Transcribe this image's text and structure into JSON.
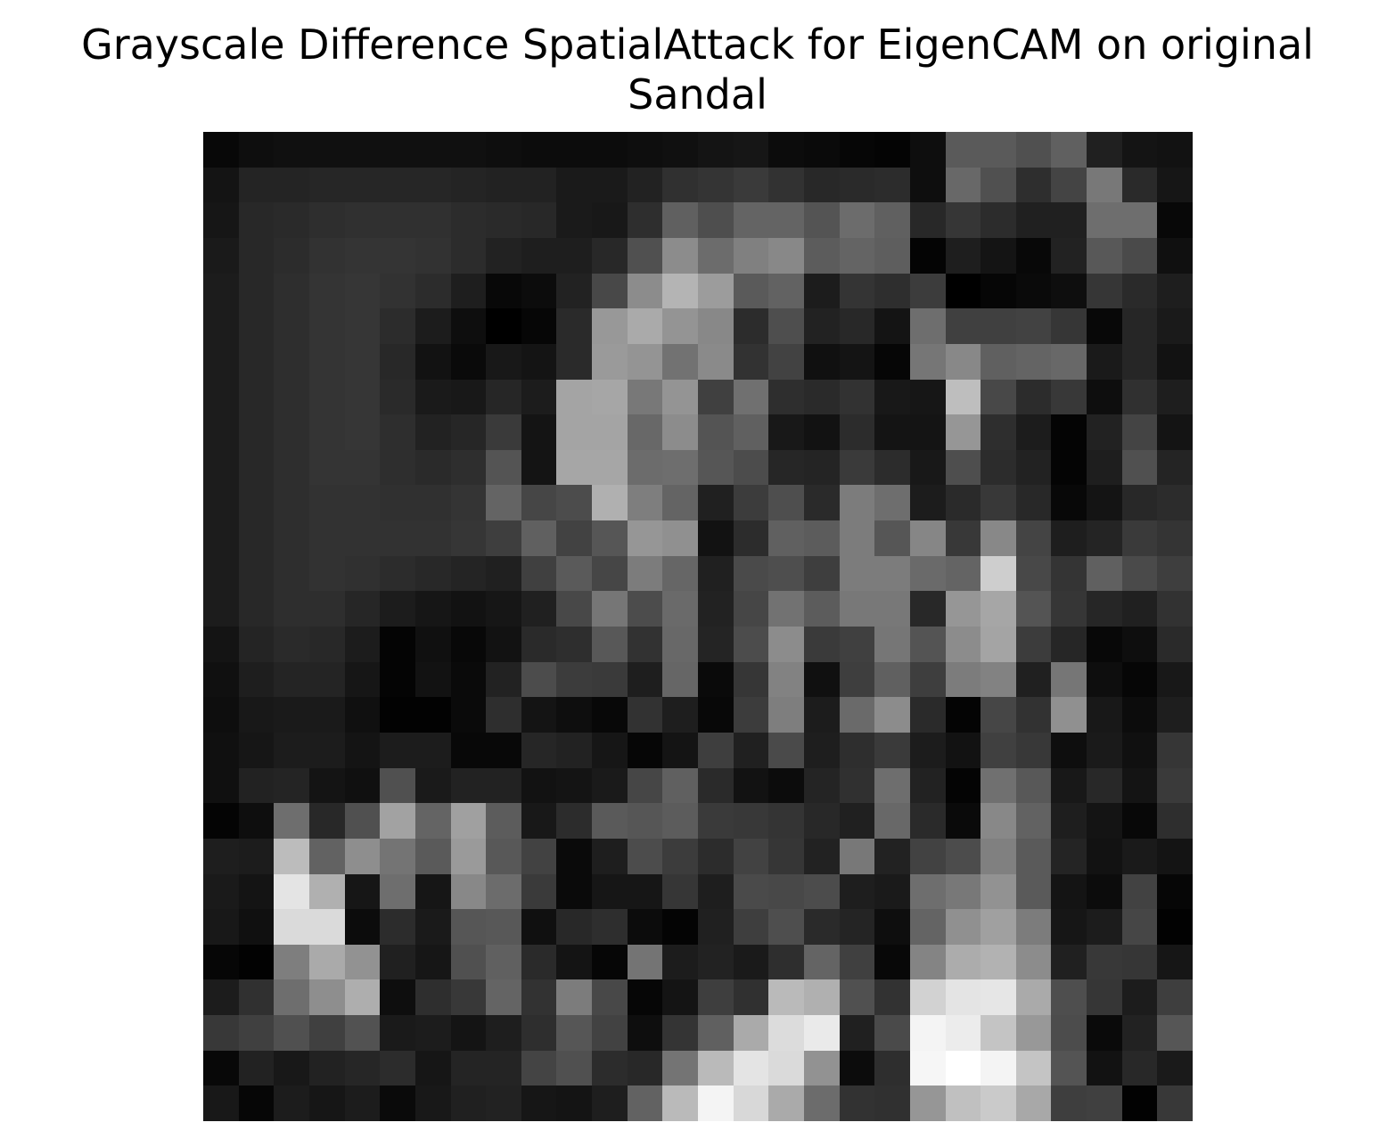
{
  "chart_data": {
    "type": "heatmap",
    "title_lines": [
      "Grayscale Difference SpatialAttack for EigenCAM on original",
      "Sandal"
    ],
    "colormap": "gray",
    "value_range": [
      0,
      255
    ],
    "axes_visible": false,
    "rows": 28,
    "cols": 28,
    "values": [
      [
        8,
        14,
        16,
        16,
        16,
        16,
        16,
        16,
        14,
        12,
        12,
        12,
        14,
        16,
        20,
        22,
        12,
        10,
        6,
        4,
        14,
        90,
        90,
        80,
        96,
        32,
        20,
        18
      ],
      [
        20,
        36,
        36,
        38,
        38,
        38,
        38,
        36,
        34,
        34,
        26,
        26,
        34,
        48,
        52,
        58,
        50,
        40,
        42,
        44,
        14,
        104,
        80,
        46,
        68,
        120,
        42,
        22
      ],
      [
        22,
        40,
        42,
        46,
        48,
        48,
        48,
        44,
        42,
        40,
        26,
        24,
        46,
        96,
        78,
        100,
        100,
        84,
        108,
        96,
        40,
        54,
        44,
        32,
        32,
        110,
        110,
        8
      ],
      [
        26,
        40,
        44,
        50,
        52,
        52,
        50,
        44,
        34,
        30,
        30,
        40,
        80,
        140,
        108,
        128,
        136,
        92,
        100,
        94,
        4,
        30,
        20,
        8,
        34,
        88,
        74,
        16
      ],
      [
        28,
        40,
        46,
        52,
        54,
        50,
        44,
        30,
        8,
        12,
        34,
        72,
        140,
        180,
        156,
        90,
        98,
        28,
        52,
        46,
        60,
        0,
        6,
        10,
        14,
        54,
        42,
        30
      ],
      [
        28,
        40,
        46,
        52,
        54,
        44,
        28,
        14,
        0,
        6,
        42,
        152,
        170,
        148,
        136,
        44,
        78,
        34,
        40,
        20,
        110,
        64,
        64,
        66,
        54,
        8,
        38,
        26
      ],
      [
        28,
        40,
        46,
        52,
        54,
        40,
        18,
        10,
        24,
        20,
        42,
        154,
        148,
        114,
        138,
        50,
        66,
        16,
        20,
        6,
        118,
        136,
        96,
        100,
        104,
        26,
        38,
        18
      ],
      [
        28,
        40,
        46,
        52,
        54,
        42,
        26,
        24,
        38,
        28,
        164,
        166,
        120,
        148,
        64,
        112,
        46,
        42,
        50,
        24,
        22,
        190,
        72,
        44,
        56,
        14,
        48,
        30
      ],
      [
        28,
        40,
        46,
        52,
        54,
        46,
        34,
        38,
        58,
        20,
        164,
        164,
        104,
        140,
        84,
        96,
        24,
        18,
        44,
        20,
        20,
        150,
        46,
        28,
        4,
        34,
        68,
        20
      ],
      [
        28,
        40,
        46,
        52,
        52,
        46,
        42,
        46,
        84,
        20,
        166,
        166,
        108,
        110,
        86,
        76,
        38,
        36,
        58,
        44,
        24,
        78,
        44,
        34,
        4,
        30,
        80,
        36
      ],
      [
        28,
        40,
        46,
        50,
        50,
        48,
        48,
        52,
        100,
        70,
        76,
        176,
        126,
        100,
        32,
        60,
        78,
        42,
        124,
        110,
        28,
        42,
        56,
        40,
        8,
        20,
        40,
        44
      ],
      [
        28,
        40,
        46,
        50,
        50,
        50,
        50,
        54,
        62,
        96,
        66,
        86,
        150,
        144,
        18,
        44,
        96,
        92,
        124,
        86,
        134,
        56,
        136,
        68,
        30,
        36,
        58,
        52
      ],
      [
        28,
        40,
        46,
        50,
        48,
        44,
        40,
        36,
        32,
        64,
        90,
        70,
        124,
        102,
        32,
        74,
        78,
        62,
        124,
        124,
        106,
        100,
        206,
        72,
        52,
        96,
        74,
        62
      ],
      [
        28,
        40,
        46,
        46,
        38,
        28,
        22,
        18,
        22,
        32,
        72,
        118,
        76,
        106,
        34,
        70,
        114,
        92,
        120,
        120,
        40,
        150,
        166,
        84,
        54,
        38,
        32,
        50
      ],
      [
        20,
        36,
        42,
        40,
        28,
        4,
        16,
        8,
        18,
        42,
        46,
        88,
        50,
        104,
        36,
        76,
        140,
        58,
        64,
        118,
        84,
        140,
        164,
        60,
        38,
        8,
        14,
        42
      ],
      [
        16,
        30,
        36,
        36,
        22,
        4,
        18,
        10,
        34,
        76,
        60,
        58,
        30,
        102,
        10,
        54,
        130,
        16,
        62,
        96,
        62,
        124,
        130,
        32,
        118,
        14,
        6,
        24
      ],
      [
        14,
        24,
        26,
        26,
        16,
        2,
        2,
        10,
        46,
        20,
        14,
        8,
        50,
        30,
        8,
        60,
        126,
        28,
        106,
        140,
        42,
        4,
        70,
        50,
        144,
        24,
        12,
        30
      ],
      [
        16,
        22,
        28,
        28,
        20,
        28,
        28,
        8,
        8,
        38,
        34,
        22,
        6,
        20,
        62,
        32,
        74,
        30,
        46,
        58,
        28,
        18,
        64,
        56,
        14,
        26,
        16,
        54
      ],
      [
        16,
        34,
        36,
        20,
        16,
        80,
        26,
        34,
        34,
        18,
        20,
        26,
        70,
        96,
        42,
        18,
        12,
        36,
        48,
        110,
        34,
        4,
        112,
        88,
        24,
        40,
        20,
        58
      ],
      [
        4,
        14,
        110,
        40,
        80,
        162,
        100,
        160,
        92,
        24,
        44,
        90,
        86,
        92,
        58,
        56,
        52,
        40,
        32,
        104,
        42,
        10,
        136,
        98,
        30,
        20,
        8,
        46
      ],
      [
        30,
        28,
        188,
        98,
        142,
        116,
        90,
        154,
        88,
        66,
        10,
        30,
        76,
        60,
        44,
        66,
        54,
        34,
        120,
        34,
        66,
        76,
        128,
        90,
        36,
        18,
        26,
        20
      ],
      [
        26,
        20,
        228,
        176,
        22,
        110,
        22,
        136,
        108,
        58,
        10,
        22,
        22,
        54,
        30,
        74,
        72,
        76,
        30,
        26,
        110,
        120,
        146,
        90,
        20,
        12,
        66,
        6
      ],
      [
        24,
        16,
        218,
        218,
        12,
        44,
        26,
        86,
        88,
        16,
        40,
        46,
        12,
        4,
        32,
        62,
        78,
        42,
        36,
        14,
        100,
        144,
        160,
        124,
        22,
        28,
        70,
        2
      ],
      [
        6,
        2,
        126,
        170,
        146,
        32,
        22,
        80,
        96,
        42,
        20,
        6,
        116,
        28,
        34,
        26,
        46,
        100,
        64,
        8,
        132,
        172,
        178,
        140,
        32,
        56,
        54,
        22
      ],
      [
        28,
        48,
        110,
        142,
        174,
        14,
        46,
        56,
        100,
        50,
        124,
        72,
        6,
        20,
        62,
        48,
        186,
        176,
        80,
        50,
        210,
        228,
        230,
        170,
        78,
        54,
        28,
        62
      ],
      [
        56,
        64,
        80,
        64,
        82,
        26,
        28,
        20,
        30,
        46,
        86,
        66,
        14,
        52,
        96,
        170,
        220,
        234,
        32,
        74,
        244,
        236,
        196,
        152,
        76,
        10,
        34,
        86
      ],
      [
        8,
        34,
        24,
        34,
        38,
        44,
        22,
        36,
        36,
        68,
        80,
        44,
        40,
        116,
        186,
        228,
        218,
        146,
        12,
        46,
        246,
        255,
        244,
        196,
        84,
        18,
        40,
        26
      ],
      [
        24,
        6,
        28,
        22,
        28,
        10,
        24,
        32,
        34,
        22,
        20,
        30,
        98,
        186,
        244,
        216,
        170,
        108,
        50,
        48,
        150,
        192,
        202,
        168,
        62,
        64,
        2,
        56
      ]
    ]
  }
}
